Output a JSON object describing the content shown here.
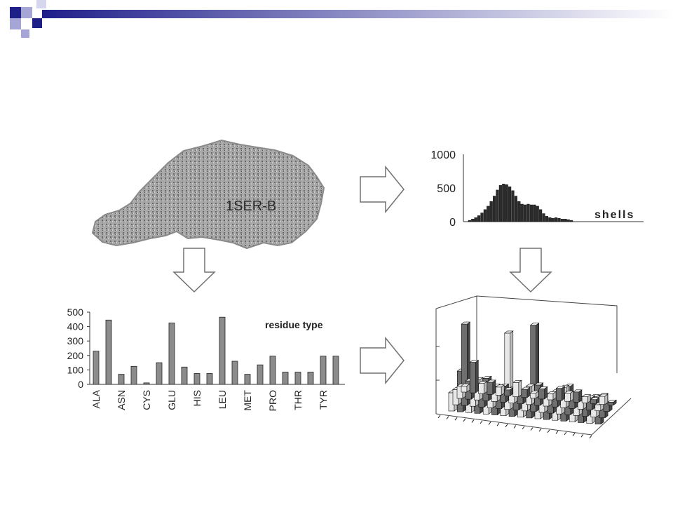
{
  "slide": {
    "protein_label": "1SER-B",
    "accent_colors": {
      "navy": "#1f1f8a",
      "lavender": "#a6a6d6",
      "bar_fill": "#8c8c8c",
      "dark_bar": "#333333"
    }
  },
  "chart_data": [
    {
      "type": "bar",
      "title": "",
      "xlabel": "shells",
      "ylabel": "",
      "ylim": [
        0,
        1000
      ],
      "yticks": [
        "1000",
        "500",
        "0"
      ],
      "yticks_values": [
        1000,
        500,
        0
      ],
      "values": [
        20,
        40,
        60,
        90,
        130,
        180,
        230,
        300,
        380,
        470,
        540,
        560,
        550,
        520,
        460,
        380,
        300,
        260,
        250,
        260,
        250,
        250,
        230,
        180,
        120,
        80,
        60,
        50,
        60,
        50,
        40,
        40,
        30,
        20
      ]
    },
    {
      "type": "bar",
      "title": "",
      "xlabel": "",
      "ylabel": "",
      "legend_label": "residue type",
      "ylim": [
        0,
        500
      ],
      "yticks": [
        "500",
        "400",
        "300",
        "200",
        "100",
        "0"
      ],
      "yticks_values": [
        500,
        400,
        300,
        200,
        100,
        0
      ],
      "categories": [
        "ALA",
        "",
        "ASN",
        "",
        "CYS",
        "",
        "GLU",
        "",
        "HIS",
        "",
        "LEU",
        "",
        "MET",
        "",
        "PRO",
        "",
        "THR",
        "",
        "TYR",
        ""
      ],
      "tick_labels": [
        "ALA",
        "ASN",
        "CYS",
        "GLU",
        "HIS",
        "LEU",
        "MET",
        "PRO",
        "THR",
        "TYR"
      ],
      "values": [
        230,
        445,
        70,
        125,
        10,
        150,
        425,
        120,
        75,
        75,
        465,
        160,
        70,
        135,
        195,
        85,
        85,
        85,
        195,
        195
      ]
    },
    {
      "type": "bar3d",
      "title": "",
      "rows": [
        [
          6,
          30,
          10,
          12,
          8,
          6,
          14,
          8,
          5,
          10,
          6,
          12,
          8,
          10,
          6,
          4,
          8,
          3
        ],
        [
          12,
          18,
          20,
          22,
          15,
          16,
          14,
          12,
          18,
          20,
          10,
          15,
          20,
          14,
          8,
          12,
          6,
          8
        ],
        [
          15,
          80,
          22,
          25,
          14,
          12,
          75,
          16,
          14,
          85,
          12,
          14,
          18,
          28,
          10,
          12,
          20,
          22
        ],
        [
          18,
          40,
          25,
          22,
          16,
          20,
          22,
          18,
          20,
          24,
          16,
          20,
          14,
          18,
          12,
          14,
          16,
          14
        ]
      ]
    }
  ]
}
